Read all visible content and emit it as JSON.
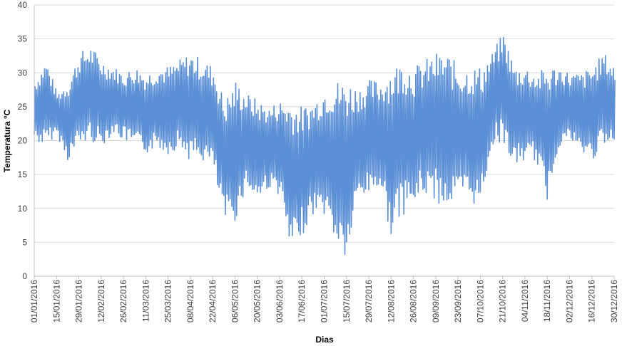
{
  "chart_data": {
    "type": "line",
    "title": "",
    "xlabel": "Dias",
    "ylabel": "Temperatura °C",
    "ylim": [
      0,
      40
    ],
    "yticks": [
      0,
      5,
      10,
      15,
      20,
      25,
      30,
      35,
      40
    ],
    "xlim": [
      "2016-01-01",
      "2016-12-30"
    ],
    "xtick_labels": [
      "01/01/2016",
      "15/01/2016",
      "29/01/2016",
      "12/02/2016",
      "26/02/2016",
      "11/03/2016",
      "25/03/2016",
      "08/04/2016",
      "22/04/2016",
      "06/05/2016",
      "20/05/2016",
      "03/06/2016",
      "17/06/2016",
      "01/07/2016",
      "15/07/2016",
      "29/07/2016",
      "12/08/2016",
      "26/08/2016",
      "09/09/2016",
      "23/09/2016",
      "07/10/2016",
      "21/10/2016",
      "04/11/2016",
      "18/11/2016",
      "02/12/2016",
      "16/12/2016",
      "30/12/2016"
    ],
    "grid": true,
    "legend": "none",
    "series_color": "#5B8FD6",
    "note_resolution": "hourly temperature trace; values below are estimated daily min/max envelope sampled roughly weekly",
    "series": [
      {
        "x": [
          "2016-01-01",
          "2016-01-08",
          "2016-01-15",
          "2016-01-22",
          "2016-01-29",
          "2016-02-05",
          "2016-02-12",
          "2016-02-19",
          "2016-02-26",
          "2016-03-04",
          "2016-03-11",
          "2016-03-18",
          "2016-03-25",
          "2016-04-01",
          "2016-04-08",
          "2016-04-15",
          "2016-04-22",
          "2016-04-29",
          "2016-05-06",
          "2016-05-13",
          "2016-05-20",
          "2016-05-27",
          "2016-06-03",
          "2016-06-10",
          "2016-06-17",
          "2016-06-24",
          "2016-07-01",
          "2016-07-08",
          "2016-07-15",
          "2016-07-22",
          "2016-07-29",
          "2016-08-05",
          "2016-08-12",
          "2016-08-19",
          "2016-08-26",
          "2016-09-02",
          "2016-09-09",
          "2016-09-16",
          "2016-09-23",
          "2016-09-30",
          "2016-10-07",
          "2016-10-14",
          "2016-10-21",
          "2016-10-28",
          "2016-11-04",
          "2016-11-11",
          "2016-11-18",
          "2016-11-25",
          "2016-12-02",
          "2016-12-09",
          "2016-12-16",
          "2016-12-23",
          "2016-12-30"
        ],
        "min": [
          20,
          19,
          21,
          17,
          19,
          20,
          19,
          21,
          20,
          19,
          18,
          19,
          18,
          19,
          17,
          17,
          16,
          8,
          8,
          13,
          11,
          13,
          12,
          3,
          6,
          9,
          9,
          5,
          2,
          11,
          12,
          13,
          6,
          9,
          10,
          12,
          11,
          10,
          11,
          11,
          10,
          19,
          20,
          16,
          17,
          17,
          11,
          19,
          20,
          18,
          17,
          19,
          19
        ],
        "max": [
          29,
          32,
          27,
          29,
          33,
          34,
          32,
          31,
          30,
          31,
          30,
          31,
          31,
          32,
          33,
          32,
          31,
          26,
          29,
          27,
          26,
          25,
          26,
          26,
          25,
          26,
          28,
          29,
          29,
          28,
          29,
          29,
          31,
          32,
          31,
          32,
          33,
          33,
          31,
          31,
          31,
          33,
          36,
          31,
          31,
          30,
          31,
          31,
          30,
          30,
          31,
          33,
          31
        ]
      }
    ]
  }
}
